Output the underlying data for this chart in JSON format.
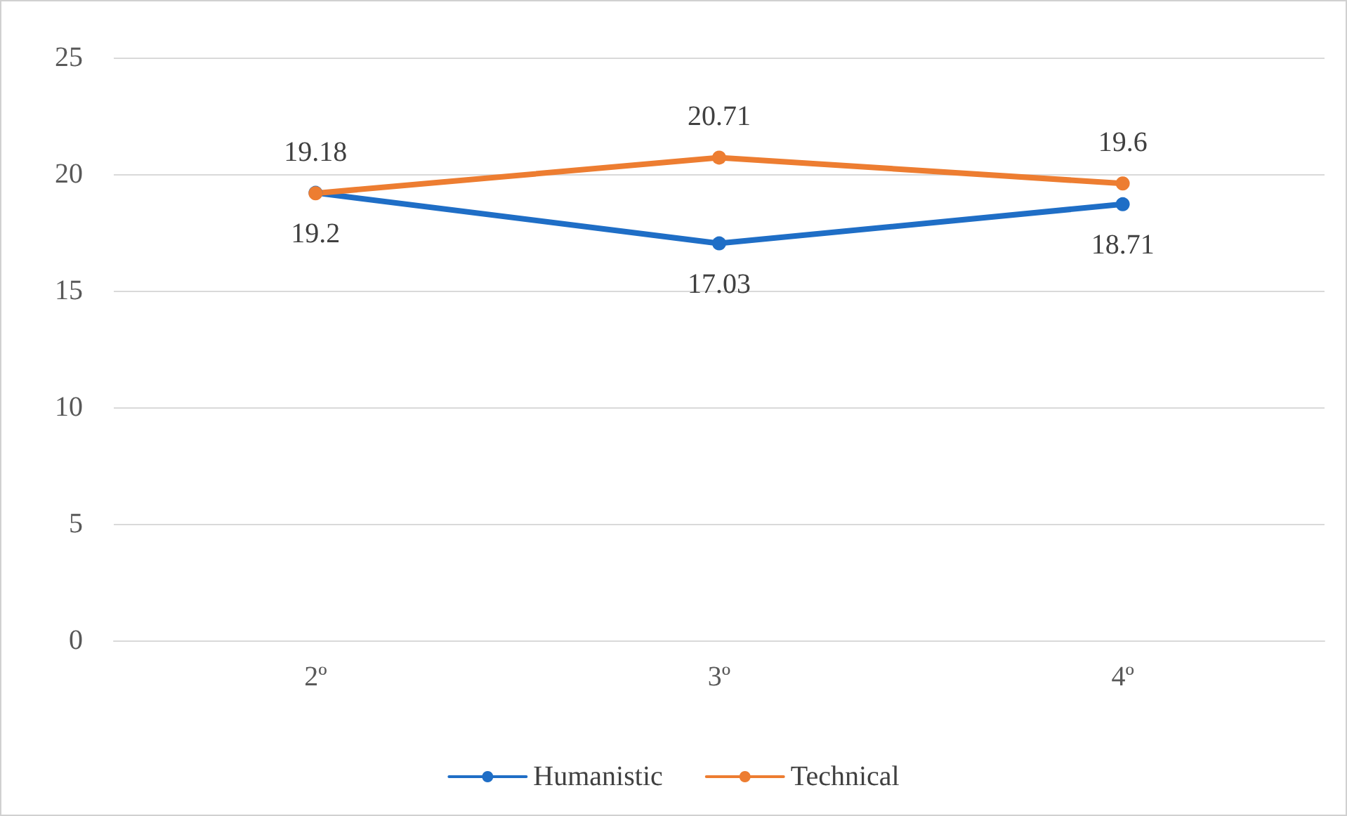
{
  "chart_data": {
    "type": "line",
    "categories": [
      "2º",
      "3º",
      "4º"
    ],
    "series": [
      {
        "name": "Humanistic",
        "color": "#1f6ec6",
        "values": [
          19.2,
          17.03,
          18.71
        ]
      },
      {
        "name": "Technical",
        "color": "#ed7d31",
        "values": [
          19.18,
          20.71,
          19.6
        ]
      }
    ],
    "ylim": [
      0,
      25
    ],
    "yticks": [
      0,
      5,
      10,
      15,
      20,
      25
    ],
    "grid": "y",
    "legend": "bottom",
    "marker": "circle",
    "line_style": "solid",
    "data_labels": true
  }
}
